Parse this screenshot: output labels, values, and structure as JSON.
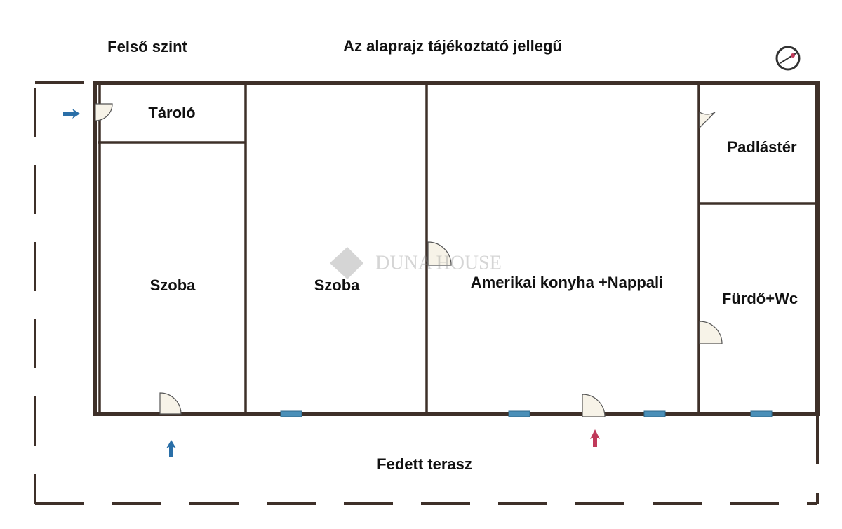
{
  "header": {
    "level": "Felső szint",
    "note": "Az alaprajz tájékoztató jellegű"
  },
  "rooms": [
    "Tároló",
    "Szoba",
    "Szoba",
    "Amerikai konyha +Nappali",
    "Padlástér",
    "Fürdő+Wc"
  ],
  "terrace": "Fedett terasz",
  "watermark": "DUNA HOUSE"
}
